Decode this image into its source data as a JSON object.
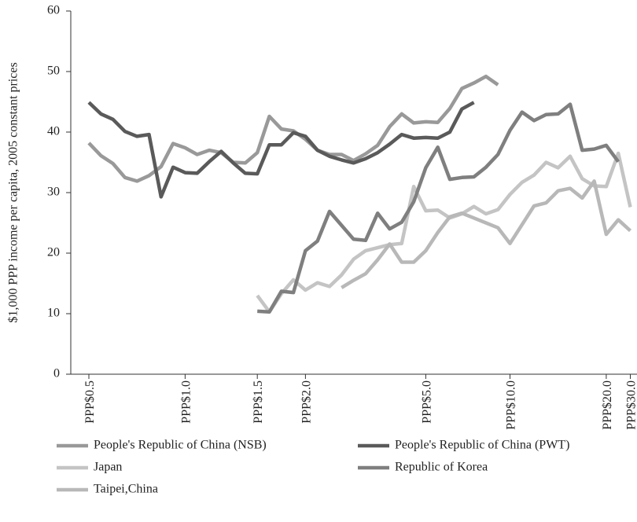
{
  "chart_data": {
    "type": "line",
    "y_label": "$1,000 PPP income per capita, 2005 constant prices",
    "categories": [
      "PPP$0.5",
      null,
      null,
      null,
      null,
      null,
      null,
      null,
      "PPP$1.0",
      null,
      null,
      null,
      null,
      null,
      "PPP$1.5",
      null,
      null,
      null,
      "PPP$2.0",
      null,
      null,
      null,
      null,
      null,
      null,
      null,
      null,
      null,
      "PPP$5.0",
      null,
      null,
      null,
      null,
      null,
      null,
      "PPP$10.0",
      null,
      null,
      null,
      null,
      null,
      null,
      null,
      "PPP$20.0",
      null,
      "PPP$30.0"
    ],
    "ylim": [
      0,
      60
    ],
    "yticks": [
      0,
      10,
      20,
      30,
      40,
      50,
      60
    ],
    "grid": false,
    "legend": "bottom",
    "series": [
      {
        "name": "People's Republic of China (NSB)",
        "color": "#999999",
        "values": [
          38.2,
          36.1,
          34.8,
          32.5,
          31.9,
          32.8,
          34.3,
          38.1,
          37.4,
          36.3,
          37.0,
          36.6,
          35.0,
          34.9,
          36.6,
          42.6,
          40.5,
          40.2,
          38.8,
          37.0,
          36.3,
          36.3,
          35.3,
          36.4,
          37.8,
          40.9,
          43.0,
          41.5,
          41.7,
          41.6,
          43.9,
          47.2,
          48.1,
          49.2,
          47.8,
          null,
          null,
          null,
          null,
          null,
          null,
          null,
          null,
          null,
          null,
          null
        ]
      },
      {
        "name": "People's Republic of China (PWT)",
        "color": "#5a5a5a",
        "values": [
          44.9,
          43.0,
          42.1,
          40.1,
          39.3,
          39.6,
          29.3,
          34.2,
          33.3,
          33.2,
          35.1,
          36.8,
          34.9,
          33.2,
          33.1,
          37.9,
          37.9,
          39.9,
          39.3,
          37.0,
          36.0,
          35.4,
          34.9,
          35.6,
          36.6,
          38.0,
          39.6,
          39.0,
          39.1,
          39.0,
          40.0,
          43.8,
          44.9,
          null,
          null,
          null,
          null,
          null,
          null,
          null,
          null,
          null,
          null,
          null,
          null,
          null
        ]
      },
      {
        "name": "Japan",
        "color": "#c4c4c4",
        "values": [
          null,
          null,
          null,
          null,
          null,
          null,
          null,
          null,
          null,
          null,
          null,
          null,
          null,
          null,
          13.0,
          10.3,
          13.3,
          15.6,
          13.9,
          15.1,
          14.5,
          16.4,
          19.0,
          20.4,
          20.9,
          21.4,
          21.6,
          31.0,
          27.0,
          27.1,
          25.8,
          26.5,
          27.7,
          26.5,
          27.2,
          29.7,
          31.7,
          32.9,
          35.0,
          34.1,
          36.0,
          32.3,
          31.1,
          31.0,
          36.5,
          27.6
        ]
      },
      {
        "name": "Republic of Korea",
        "color": "#7f7f7f",
        "values": [
          null,
          null,
          null,
          null,
          null,
          null,
          null,
          null,
          null,
          null,
          null,
          null,
          null,
          null,
          10.4,
          10.3,
          13.7,
          13.5,
          20.4,
          22.0,
          26.9,
          24.6,
          22.3,
          22.1,
          26.6,
          24.0,
          25.1,
          28.5,
          34.1,
          37.5,
          32.2,
          32.5,
          32.6,
          34.2,
          36.3,
          40.3,
          43.3,
          41.9,
          42.9,
          43.0,
          44.6,
          37.0,
          37.2,
          37.8,
          35.1,
          null
        ]
      },
      {
        "name": "Taipei,China",
        "color": "#b8b8b8",
        "values": [
          null,
          null,
          null,
          null,
          null,
          null,
          null,
          null,
          null,
          null,
          null,
          null,
          null,
          null,
          null,
          null,
          null,
          null,
          null,
          null,
          null,
          14.3,
          15.5,
          16.6,
          18.9,
          21.5,
          18.5,
          18.5,
          20.4,
          23.4,
          26.0,
          26.6,
          25.8,
          25.0,
          24.2,
          21.6,
          24.7,
          27.8,
          28.3,
          30.3,
          30.7,
          29.1,
          31.9,
          23.1,
          25.5,
          23.7
        ]
      }
    ]
  }
}
